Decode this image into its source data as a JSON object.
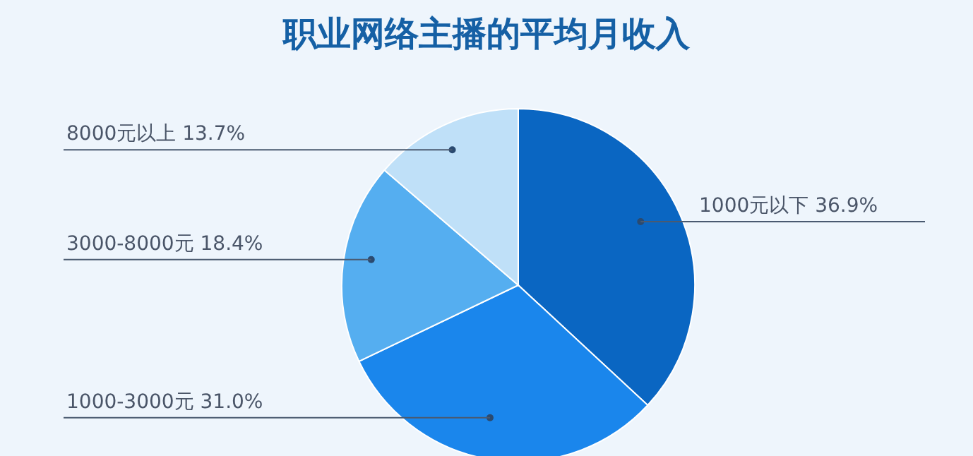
{
  "chart_data": {
    "type": "pie",
    "title": "职业网络主播的平均月收入",
    "categories": [
      "1000元以下",
      "1000-3000元",
      "3000-8000元",
      "8000元以上"
    ],
    "values": [
      36.9,
      31.0,
      18.4,
      13.7
    ],
    "value_labels": [
      "36.9%",
      "31.0%",
      "18.4%",
      "13.7%"
    ],
    "colors": [
      "#0a66c2",
      "#1a86ec",
      "#55aef0",
      "#bfe0f8"
    ],
    "legend": false
  }
}
